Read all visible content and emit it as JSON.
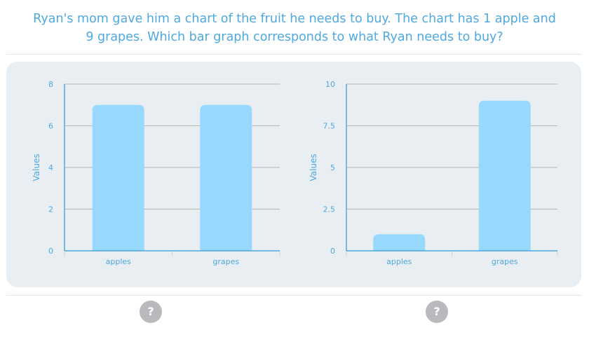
{
  "question": {
    "line1": "Ryan's mom gave him a chart of the fruit he needs to buy. The chart has 1 apple and",
    "line2": "9 grapes. Which bar graph corresponds to what Ryan needs to buy?"
  },
  "colors": {
    "bar": "#96d9fd",
    "axis": "#4fa8de",
    "grid": "#b4b7ba",
    "text": "#4fa8de",
    "panel": "#e9eef2",
    "help_button": "#b8babd"
  },
  "help_icon": "question-mark-icon",
  "help_label": "?",
  "chart_data": [
    {
      "type": "bar",
      "categories": [
        "apples",
        "grapes"
      ],
      "values": [
        7,
        7
      ],
      "ylabel": "Values",
      "ylim": [
        0,
        8
      ],
      "yticks": [
        "0",
        "2",
        "4",
        "6",
        "8"
      ],
      "grid": true
    },
    {
      "type": "bar",
      "categories": [
        "apples",
        "grapes"
      ],
      "values": [
        1,
        9
      ],
      "ylabel": "Values",
      "ylim": [
        0,
        10
      ],
      "yticks": [
        "0",
        "2.5",
        "5",
        "7.5",
        "10"
      ],
      "grid": true
    }
  ]
}
